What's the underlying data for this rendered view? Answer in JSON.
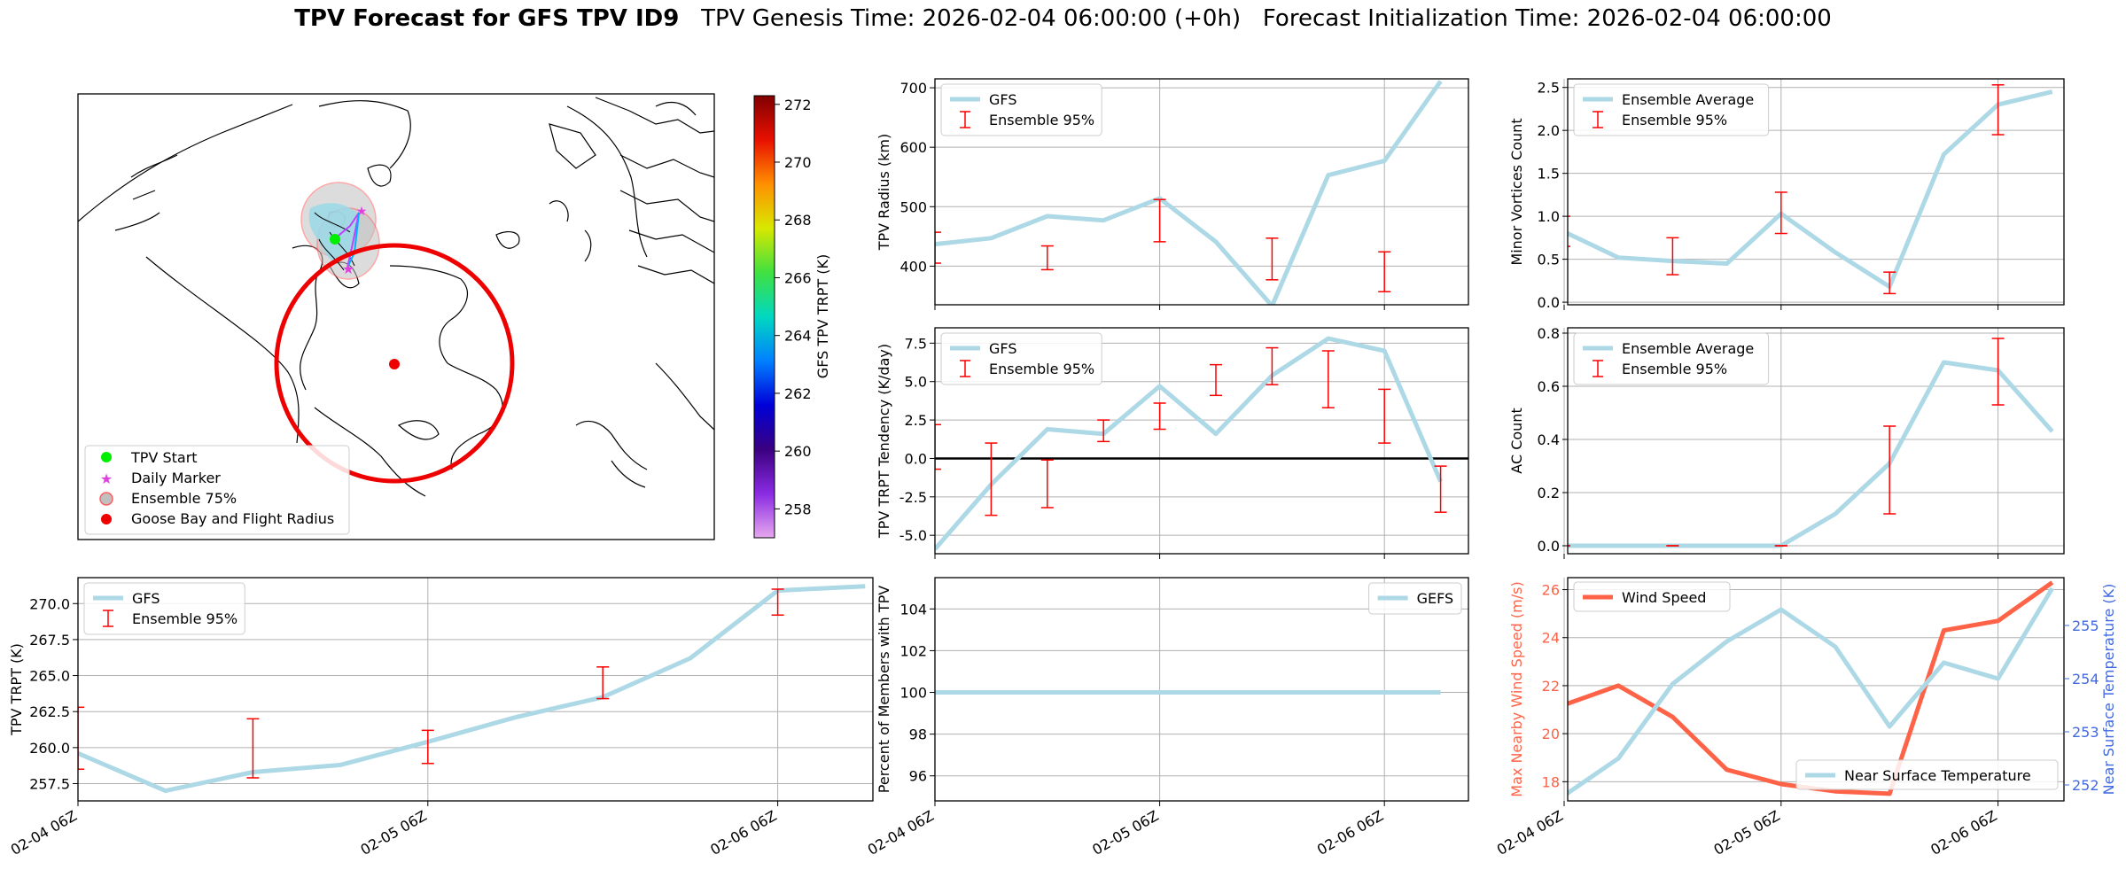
{
  "title": {
    "bold": "TPV Forecast for GFS TPV ID9",
    "genesis": "TPV Genesis Time: 2026-02-04 06:00:00 (+0h)",
    "init": "Forecast Initialization Time: 2026-02-04 06:00:00"
  },
  "colors": {
    "gfs_line": "#add8e6",
    "err": "#ff0000",
    "wind": "#ff6347",
    "temp_axis": "#4169e1",
    "zero_line": "#000000"
  },
  "map": {
    "legend": [
      "TPV Start",
      "Daily Marker",
      "Ensemble 75%",
      "Goose Bay and Flight Radius"
    ],
    "colorbar": {
      "label": "GFS TPV TRPT (K)",
      "min": 257,
      "max": 272.3,
      "ticks": [
        258,
        260,
        262,
        264,
        266,
        268,
        270,
        272
      ]
    }
  },
  "chart_data": [
    {
      "id": "radius",
      "type": "line",
      "x": [
        "2026-02-04 06Z",
        "2026-02-04 12Z",
        "2026-02-04 18Z",
        "2026-02-05 00Z",
        "2026-02-05 06Z",
        "2026-02-05 12Z",
        "2026-02-05 18Z",
        "2026-02-06 00Z",
        "2026-02-06 06Z",
        "2026-02-06 12Z"
      ],
      "ylabel": "TPV Radius (km)",
      "ylim": [
        335,
        715
      ],
      "yticks": [
        400,
        500,
        600,
        700
      ],
      "grid": true,
      "legend_loc": "upper-left",
      "series": [
        {
          "name": "GFS",
          "values": [
            437,
            447,
            484,
            477,
            514,
            441,
            333,
            553,
            577,
            711
          ]
        },
        {
          "name": "Ensemble 95%",
          "errorbars": [
            {
              "x": "2026-02-04 06Z",
              "low": 405,
              "high": 457
            },
            {
              "x": "2026-02-04 18Z",
              "low": 394,
              "high": 434
            },
            {
              "x": "2026-02-05 06Z",
              "low": 441,
              "high": 512
            },
            {
              "x": "2026-02-05 18Z",
              "low": 377,
              "high": 447
            },
            {
              "x": "2026-02-06 06Z",
              "low": 357,
              "high": 424
            }
          ]
        }
      ]
    },
    {
      "id": "minor",
      "type": "line",
      "x": [
        "2026-02-04 06Z",
        "2026-02-04 12Z",
        "2026-02-04 18Z",
        "2026-02-05 00Z",
        "2026-02-05 06Z",
        "2026-02-05 12Z",
        "2026-02-05 18Z",
        "2026-02-06 00Z",
        "2026-02-06 06Z",
        "2026-02-06 12Z"
      ],
      "ylabel": "Minor Vortices Count",
      "ylim": [
        -0.03,
        2.6
      ],
      "yticks": [
        0.0,
        0.5,
        1.0,
        1.5,
        2.0,
        2.5
      ],
      "grid": true,
      "legend_loc": "upper-left",
      "series": [
        {
          "name": "Ensemble Average",
          "values": [
            0.82,
            0.52,
            0.48,
            0.45,
            1.03,
            0.58,
            0.18,
            1.72,
            2.3,
            2.45
          ]
        },
        {
          "name": "Ensemble 95%",
          "errorbars": [
            {
              "x": "2026-02-04 06Z",
              "low": 0.65,
              "high": 1.0
            },
            {
              "x": "2026-02-04 18Z",
              "low": 0.32,
              "high": 0.75
            },
            {
              "x": "2026-02-05 06Z",
              "low": 0.8,
              "high": 1.28
            },
            {
              "x": "2026-02-05 18Z",
              "low": 0.1,
              "high": 0.35
            },
            {
              "x": "2026-02-06 06Z",
              "low": 1.95,
              "high": 2.53
            }
          ]
        }
      ]
    },
    {
      "id": "tend",
      "type": "line",
      "x": [
        "2026-02-04 06Z",
        "2026-02-04 12Z",
        "2026-02-04 18Z",
        "2026-02-05 00Z",
        "2026-02-05 06Z",
        "2026-02-05 12Z",
        "2026-02-05 18Z",
        "2026-02-06 00Z",
        "2026-02-06 06Z",
        "2026-02-06 12Z"
      ],
      "ylabel": "TPV TRPT Tendency (K/day)",
      "ylim": [
        -6.2,
        8.5
      ],
      "yticks": [
        -5.0,
        -2.5,
        0.0,
        2.5,
        5.0,
        7.5
      ],
      "grid": true,
      "zero_line": true,
      "legend_loc": "upper-left",
      "series": [
        {
          "name": "GFS",
          "values": [
            -5.9,
            -1.7,
            1.9,
            1.6,
            4.7,
            1.6,
            5.4,
            7.8,
            7.0,
            -1.5
          ]
        },
        {
          "name": "Ensemble 95%",
          "errorbars": [
            {
              "x": "2026-02-04 06Z",
              "low": -0.7,
              "high": 2.2
            },
            {
              "x": "2026-02-04 12Z",
              "low": -3.7,
              "high": 1.0
            },
            {
              "x": "2026-02-04 18Z",
              "low": -3.2,
              "high": -0.1
            },
            {
              "x": "2026-02-05 00Z",
              "low": 1.1,
              "high": 2.5
            },
            {
              "x": "2026-02-05 06Z",
              "low": 1.9,
              "high": 3.6
            },
            {
              "x": "2026-02-05 12Z",
              "low": 4.1,
              "high": 6.1
            },
            {
              "x": "2026-02-05 18Z",
              "low": 4.8,
              "high": 7.2
            },
            {
              "x": "2026-02-06 00Z",
              "low": 3.3,
              "high": 7.0
            },
            {
              "x": "2026-02-06 06Z",
              "low": 1.0,
              "high": 4.5
            },
            {
              "x": "2026-02-06 12Z",
              "low": -3.5,
              "high": -0.5
            }
          ]
        }
      ]
    },
    {
      "id": "ac",
      "type": "line",
      "x": [
        "2026-02-04 06Z",
        "2026-02-04 12Z",
        "2026-02-04 18Z",
        "2026-02-05 00Z",
        "2026-02-05 06Z",
        "2026-02-05 12Z",
        "2026-02-05 18Z",
        "2026-02-06 00Z",
        "2026-02-06 06Z",
        "2026-02-06 12Z"
      ],
      "ylabel": "AC Count",
      "ylim": [
        -0.03,
        0.82
      ],
      "yticks": [
        0.0,
        0.2,
        0.4,
        0.6,
        0.8
      ],
      "grid": true,
      "legend_loc": "upper-left",
      "series": [
        {
          "name": "Ensemble Average",
          "values": [
            0.0,
            0.0,
            0.0,
            0.0,
            0.0,
            0.12,
            0.31,
            0.69,
            0.66,
            0.43
          ]
        },
        {
          "name": "Ensemble 95%",
          "errorbars": [
            {
              "x": "2026-02-04 06Z",
              "low": 0.0,
              "high": 0.0
            },
            {
              "x": "2026-02-04 18Z",
              "low": 0.0,
              "high": 0.0
            },
            {
              "x": "2026-02-05 06Z",
              "low": 0.0,
              "high": 0.0
            },
            {
              "x": "2026-02-05 18Z",
              "low": 0.12,
              "high": 0.45
            },
            {
              "x": "2026-02-06 06Z",
              "low": 0.53,
              "high": 0.78
            }
          ]
        }
      ]
    },
    {
      "id": "trpt",
      "type": "line",
      "x": [
        "2026-02-04 06Z",
        "2026-02-04 12Z",
        "2026-02-04 18Z",
        "2026-02-05 00Z",
        "2026-02-05 06Z",
        "2026-02-05 12Z",
        "2026-02-05 18Z",
        "2026-02-06 00Z",
        "2026-02-06 06Z",
        "2026-02-06 12Z"
      ],
      "ylabel": "TPV TRPT (K)",
      "xticks": [
        "02-04 06Z",
        "02-05 06Z",
        "02-06 06Z"
      ],
      "ylim": [
        256.3,
        271.8
      ],
      "yticks": [
        257.5,
        260.0,
        262.5,
        265.0,
        267.5,
        270.0
      ],
      "grid": true,
      "legend_loc": "upper-left",
      "series": [
        {
          "name": "GFS",
          "values": [
            259.6,
            257.0,
            258.3,
            258.8,
            260.4,
            262.1,
            263.5,
            266.2,
            270.9,
            271.2
          ]
        },
        {
          "name": "Ensemble 95%",
          "errorbars": [
            {
              "x": "2026-02-04 06Z",
              "low": 258.5,
              "high": 262.8
            },
            {
              "x": "2026-02-04 18Z",
              "low": 257.9,
              "high": 262.0
            },
            {
              "x": "2026-02-05 06Z",
              "low": 258.9,
              "high": 261.2
            },
            {
              "x": "2026-02-05 18Z",
              "low": 263.4,
              "high": 265.6
            },
            {
              "x": "2026-02-06 06Z",
              "low": 269.2,
              "high": 271.0
            }
          ]
        }
      ]
    },
    {
      "id": "pct",
      "type": "line",
      "x": [
        "2026-02-04 06Z",
        "2026-02-06 12Z"
      ],
      "ylabel": "Percent of Members with TPV",
      "xticks": [
        "02-04 06Z",
        "02-05 06Z",
        "02-06 06Z"
      ],
      "ylim": [
        94.8,
        105.5
      ],
      "yticks": [
        96,
        98,
        100,
        102,
        104
      ],
      "grid": true,
      "legend_loc": "upper-right",
      "series": [
        {
          "name": "GEFS",
          "values": [
            100,
            100
          ]
        }
      ]
    },
    {
      "id": "wind",
      "type": "line",
      "x": [
        "2026-02-04 06Z",
        "2026-02-04 12Z",
        "2026-02-04 18Z",
        "2026-02-05 00Z",
        "2026-02-05 06Z",
        "2026-02-05 12Z",
        "2026-02-05 18Z",
        "2026-02-06 00Z",
        "2026-02-06 06Z",
        "2026-02-06 12Z"
      ],
      "ylabel": "Max Nearby Wind Speed (m/s)",
      "ylabel2": "Near Surface Temperature (K)",
      "xticks": [
        "02-04 06Z",
        "02-05 06Z",
        "02-06 06Z"
      ],
      "ylim": [
        17.2,
        26.5
      ],
      "yticks": [
        18,
        20,
        22,
        24,
        26
      ],
      "ylim2": [
        251.7,
        255.9
      ],
      "yticks2": [
        252,
        253,
        254,
        255
      ],
      "grid": true,
      "legend_loc": "upper-left",
      "series": [
        {
          "name": "Wind Speed",
          "axis": "left",
          "values": [
            21.2,
            22.0,
            20.7,
            18.5,
            17.9,
            17.6,
            17.5,
            24.3,
            24.7,
            26.3
          ]
        },
        {
          "name": "Near Surface Temperature",
          "axis": "right",
          "values": [
            251.8,
            252.5,
            253.9,
            254.7,
            255.3,
            254.6,
            253.1,
            254.3,
            254.0,
            255.7
          ]
        }
      ]
    }
  ]
}
